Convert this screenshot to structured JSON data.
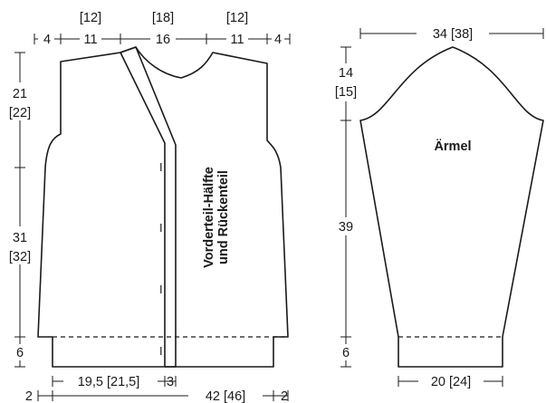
{
  "body_dims": {
    "top_alt_left": "[12]",
    "top_alt_mid": "[18]",
    "top_alt_right": "[12]",
    "top_left_edge": "4",
    "top_shoulder_left": "11",
    "top_neck": "16",
    "top_shoulder_right": "11",
    "top_right_edge": "4",
    "armhole_height": "21",
    "armhole_height_alt": "[22]",
    "side_length": "31",
    "side_length_alt": "[32]",
    "rib_height": "6",
    "front_width": "19,5 [21,5]",
    "band_width": "3",
    "bottom_left_edge": "2",
    "back_width": "42 [46]",
    "bottom_right_edge": "2",
    "piece_label_line1": "Vorderteil-Hälfte",
    "piece_label_line2": "und Rückenteil",
    "buttonhole_mark": "I"
  },
  "sleeve_dims": {
    "top_width": "34 [38]",
    "cap_height": "14",
    "cap_height_alt": "[15]",
    "length": "39",
    "rib_height": "6",
    "cuff_width": "20 [24]",
    "label": "Ärmel"
  },
  "colors": {
    "ink": "#1a1a1a",
    "background": "#ffffff"
  }
}
